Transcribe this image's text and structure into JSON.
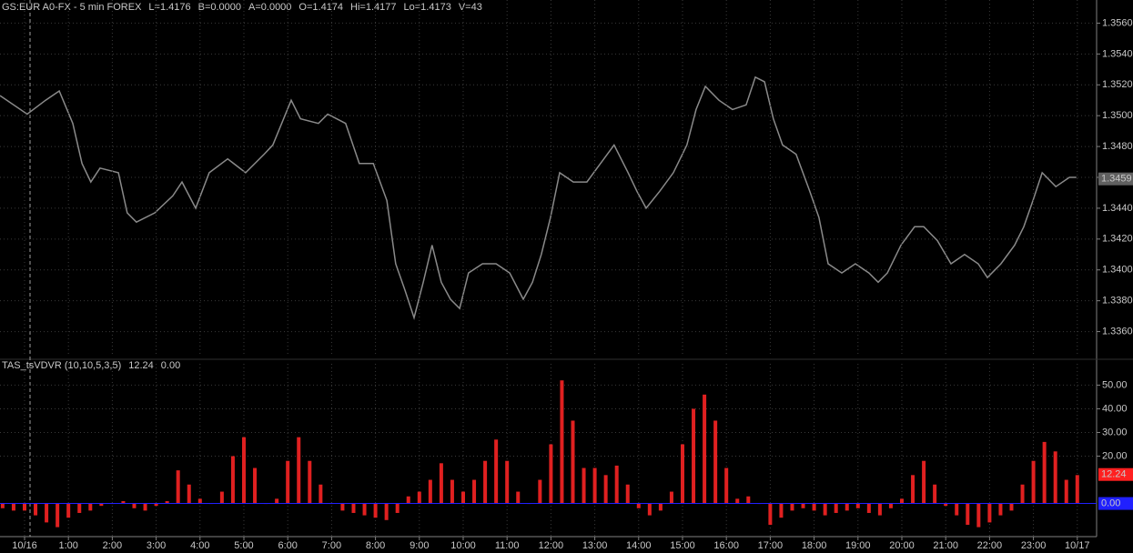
{
  "header": {
    "symbol": "GS:EUR A0-FX - 5 min  FOREX",
    "fields": [
      {
        "text": "L=1.4176",
        "color": "#4040ff"
      },
      {
        "text": "B=0.0000",
        "color": "#d030d0"
      },
      {
        "text": "A=0.0000",
        "color": "#d030d0"
      },
      {
        "text": "O=1.4174",
        "color": "#4040ff"
      },
      {
        "text": "Hi=1.4177",
        "color": "#d030d0"
      },
      {
        "text": "Lo=1.4173",
        "color": "#d030d0"
      },
      {
        "text": "V=43",
        "color": "#d030d0"
      }
    ]
  },
  "chart_data": [
    {
      "type": "line",
      "color": "#8a8a8a",
      "grid": true,
      "last_label": {
        "value": 1.3459,
        "label": "1.3459"
      },
      "xlim": [
        -0.56,
        24.44
      ],
      "ylim": [
        1.3345,
        1.3575
      ],
      "yticks": [
        {
          "value": 1.336,
          "label": "1.3360"
        },
        {
          "value": 1.338,
          "label": "1.3380"
        },
        {
          "value": 1.34,
          "label": "1.3400"
        },
        {
          "value": 1.342,
          "label": "1.3420"
        },
        {
          "value": 1.344,
          "label": "1.3440"
        },
        {
          "value": 1.346,
          "label": "1.3460"
        },
        {
          "value": 1.348,
          "label": "1.3480"
        },
        {
          "value": 1.35,
          "label": "1.3500"
        },
        {
          "value": 1.352,
          "label": "1.3520"
        },
        {
          "value": 1.354,
          "label": "1.3540"
        },
        {
          "value": 1.356,
          "label": "1.3560"
        }
      ],
      "x": [
        -0.56,
        0.06,
        0.48,
        0.79,
        1.1,
        1.31,
        1.51,
        1.72,
        2.14,
        2.34,
        2.55,
        2.97,
        3.38,
        3.59,
        3.9,
        4.21,
        4.63,
        5.04,
        5.46,
        5.66,
        6.08,
        6.29,
        6.7,
        6.91,
        7.32,
        7.63,
        7.95,
        8.26,
        8.46,
        8.67,
        8.88,
        9.09,
        9.29,
        9.5,
        9.71,
        9.92,
        10.12,
        10.44,
        10.75,
        11.06,
        11.37,
        11.58,
        11.78,
        11.99,
        12.2,
        12.51,
        12.82,
        13.13,
        13.44,
        13.76,
        13.96,
        14.17,
        14.48,
        14.79,
        15.1,
        15.31,
        15.52,
        15.83,
        16.14,
        16.45,
        16.66,
        16.87,
        17.07,
        17.28,
        17.59,
        17.9,
        18.11,
        18.32,
        18.63,
        18.94,
        19.25,
        19.46,
        19.67,
        19.98,
        20.29,
        20.5,
        20.81,
        21.12,
        21.43,
        21.74,
        21.95,
        22.26,
        22.57,
        22.78,
        22.99,
        23.2,
        23.51,
        23.82,
        23.98
      ],
      "values": [
        1.3513,
        1.3501,
        1.351,
        1.3516,
        1.3495,
        1.3469,
        1.3457,
        1.3466,
        1.3463,
        1.3437,
        1.3431,
        1.3437,
        1.3448,
        1.3457,
        1.344,
        1.3463,
        1.3472,
        1.3463,
        1.3475,
        1.3481,
        1.351,
        1.3498,
        1.3495,
        1.3501,
        1.3495,
        1.3469,
        1.3469,
        1.3445,
        1.3404,
        1.3387,
        1.3369,
        1.3392,
        1.3416,
        1.3392,
        1.3381,
        1.3375,
        1.3398,
        1.3404,
        1.3404,
        1.3398,
        1.3381,
        1.3392,
        1.341,
        1.3434,
        1.3463,
        1.3457,
        1.3457,
        1.3469,
        1.3481,
        1.3463,
        1.3451,
        1.344,
        1.3451,
        1.3463,
        1.3481,
        1.3504,
        1.3519,
        1.351,
        1.3504,
        1.3507,
        1.3525,
        1.3522,
        1.3498,
        1.3481,
        1.3475,
        1.3451,
        1.3434,
        1.3404,
        1.3398,
        1.3404,
        1.3398,
        1.3392,
        1.3398,
        1.3416,
        1.3428,
        1.3428,
        1.3419,
        1.3404,
        1.341,
        1.3404,
        1.3395,
        1.3404,
        1.3416,
        1.3428,
        1.3445,
        1.3463,
        1.3454,
        1.346,
        1.346
      ]
    },
    {
      "type": "bar",
      "title": "TAS_tsVDVR (10,10,5,3,5)",
      "color": "#e02020",
      "grid": true,
      "readouts": [
        {
          "value": 12.24,
          "color": "#ff2020"
        },
        {
          "value": 0,
          "label": "0.00",
          "color": "#2020ff"
        }
      ],
      "xlim": [
        -0.56,
        24.44
      ],
      "ylim": [
        -14,
        59
      ],
      "yticks": [
        {
          "value": 20,
          "label": "20.00"
        },
        {
          "value": 30,
          "label": "30.00"
        },
        {
          "value": 40,
          "label": "40.00"
        },
        {
          "value": 50,
          "label": "50.00"
        }
      ],
      "xticks": [
        {
          "value": 0,
          "label": "10/16"
        },
        {
          "value": 1,
          "label": "1:00"
        },
        {
          "value": 2,
          "label": "2:00"
        },
        {
          "value": 3,
          "label": "3:00"
        },
        {
          "value": 4,
          "label": "4:00"
        },
        {
          "value": 5,
          "label": "5:00"
        },
        {
          "value": 6,
          "label": "6:00"
        },
        {
          "value": 7,
          "label": "7:00"
        },
        {
          "value": 8,
          "label": "8:00"
        },
        {
          "value": 9,
          "label": "9:00"
        },
        {
          "value": 10,
          "label": "10:00"
        },
        {
          "value": 11,
          "label": "11:00"
        },
        {
          "value": 12,
          "label": "12:00"
        },
        {
          "value": 13,
          "label": "13:00"
        },
        {
          "value": 14,
          "label": "14:00"
        },
        {
          "value": 15,
          "label": "15:00"
        },
        {
          "value": 16,
          "label": "16:00"
        },
        {
          "value": 17,
          "label": "17:00"
        },
        {
          "value": 18,
          "label": "18:00"
        },
        {
          "value": 19,
          "label": "19:00"
        },
        {
          "value": 20,
          "label": "20:00"
        },
        {
          "value": 21,
          "label": "21:00"
        },
        {
          "value": 22,
          "label": "22:00"
        },
        {
          "value": 23,
          "label": "23:00"
        },
        {
          "value": 24,
          "label": "10/17"
        }
      ],
      "x": [
        -0.5,
        -0.25,
        0,
        0.25,
        0.5,
        0.75,
        1,
        1.25,
        1.5,
        1.75,
        2,
        2.25,
        2.5,
        2.75,
        3,
        3.25,
        3.5,
        3.75,
        4,
        4.25,
        4.5,
        4.75,
        5,
        5.25,
        5.5,
        5.75,
        6,
        6.25,
        6.5,
        6.75,
        7,
        7.25,
        7.5,
        7.75,
        8,
        8.25,
        8.5,
        8.75,
        9,
        9.25,
        9.5,
        9.75,
        10,
        10.25,
        10.5,
        10.75,
        11,
        11.25,
        11.5,
        11.75,
        12,
        12.25,
        12.5,
        12.75,
        13,
        13.25,
        13.5,
        13.75,
        14,
        14.25,
        14.5,
        14.75,
        15,
        15.25,
        15.5,
        15.75,
        16,
        16.25,
        16.5,
        16.75,
        17,
        17.25,
        17.5,
        17.75,
        18,
        18.25,
        18.5,
        18.75,
        19,
        19.25,
        19.5,
        19.75,
        20,
        20.25,
        20.5,
        20.75,
        21,
        21.25,
        21.5,
        21.75,
        22,
        22.25,
        22.5,
        22.75,
        23,
        23.25,
        23.5,
        23.75,
        24
      ],
      "values": [
        -2,
        -3,
        -3,
        -5,
        -8,
        -10,
        -6,
        -4,
        -3,
        -1,
        0,
        1,
        -2,
        -3,
        -1,
        1,
        14,
        8,
        2,
        0,
        5,
        20,
        28,
        15,
        0,
        2,
        18,
        28,
        18,
        8,
        0,
        -3,
        -4,
        -5,
        -6,
        -7,
        -4,
        3,
        5,
        10,
        17,
        10,
        5,
        10,
        18,
        27,
        18,
        5,
        0,
        10,
        25,
        52,
        35,
        15,
        15,
        12,
        16,
        8,
        -2,
        -5,
        -3,
        5,
        25,
        40,
        46,
        35,
        15,
        2,
        3,
        0,
        -9,
        -6,
        -3,
        -2,
        -3,
        -5,
        -4,
        -3,
        -2,
        -4,
        -5,
        -2,
        2,
        12,
        18,
        8,
        -1,
        -5,
        -9,
        -10,
        -8,
        -5,
        -3,
        8,
        18,
        26,
        22,
        10,
        12
      ]
    }
  ]
}
